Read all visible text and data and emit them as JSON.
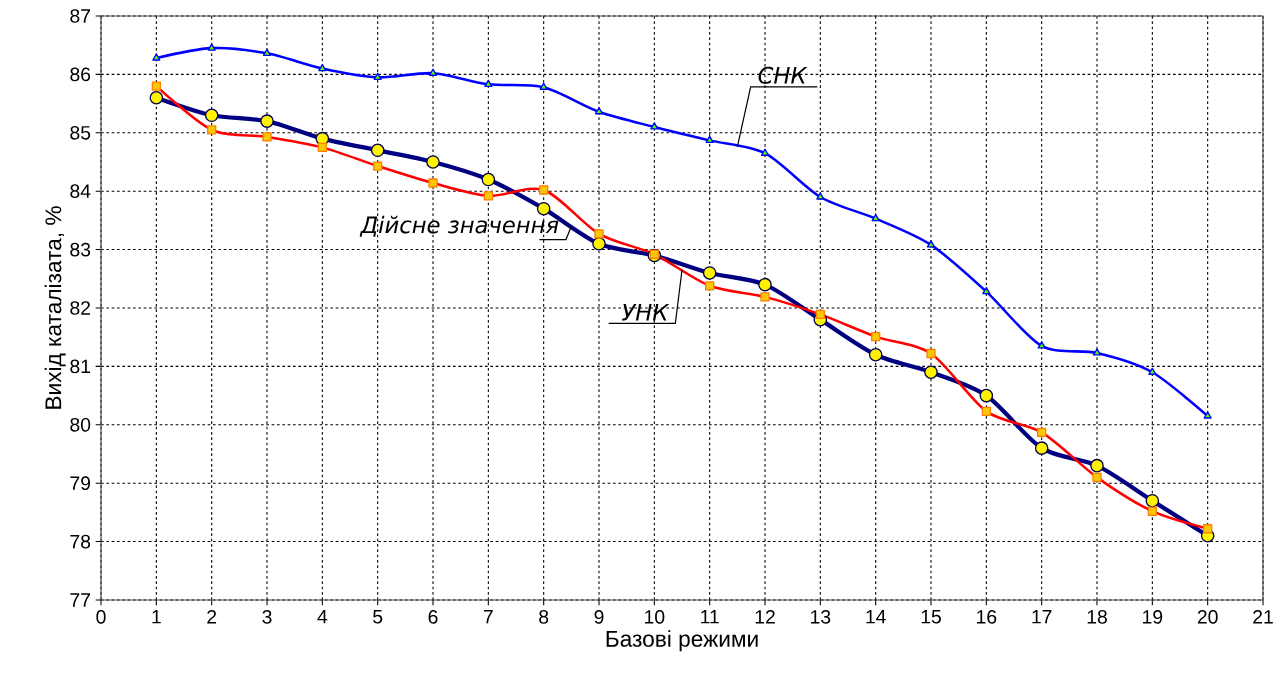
{
  "chart_data": {
    "type": "line",
    "xlabel": "Базові режими",
    "ylabel": "Вихід каталізата, %",
    "x": [
      1,
      2,
      3,
      4,
      5,
      6,
      7,
      8,
      9,
      10,
      11,
      12,
      13,
      14,
      15,
      16,
      17,
      18,
      19,
      20
    ],
    "series": [
      {
        "name": "СНК",
        "color": "#0000ff",
        "marker": "triangle",
        "values": [
          86.28,
          86.45,
          86.36,
          86.1,
          85.95,
          86.02,
          85.83,
          85.78,
          85.36,
          85.1,
          84.87,
          84.65,
          83.9,
          83.53,
          83.08,
          82.28,
          81.35,
          81.23,
          80.9,
          80.15
        ]
      },
      {
        "name": "Дійсне значення",
        "color": "#000080",
        "marker": "circle",
        "values": [
          85.6,
          85.3,
          85.2,
          84.9,
          84.7,
          84.5,
          84.2,
          83.7,
          83.1,
          82.9,
          82.6,
          82.4,
          81.8,
          81.2,
          80.9,
          80.5,
          79.6,
          79.3,
          78.7,
          78.1
        ]
      },
      {
        "name": "УНК",
        "color": "#ff0000",
        "marker": "square",
        "values": [
          85.8,
          85.05,
          84.93,
          84.75,
          84.43,
          84.14,
          83.92,
          84.02,
          83.27,
          82.92,
          82.38,
          82.19,
          81.89,
          81.51,
          81.22,
          80.23,
          79.87,
          79.1,
          78.52,
          78.22
        ]
      }
    ],
    "xlim": [
      0,
      21
    ],
    "xticks": [
      0,
      1,
      2,
      3,
      4,
      5,
      6,
      7,
      8,
      9,
      10,
      11,
      12,
      13,
      14,
      15,
      16,
      17,
      18,
      19,
      20,
      21
    ],
    "ylim": [
      77,
      87
    ],
    "yticks": [
      77,
      78,
      79,
      80,
      81,
      82,
      83,
      84,
      85,
      86,
      87
    ],
    "grid": true,
    "line_style": "solid"
  }
}
